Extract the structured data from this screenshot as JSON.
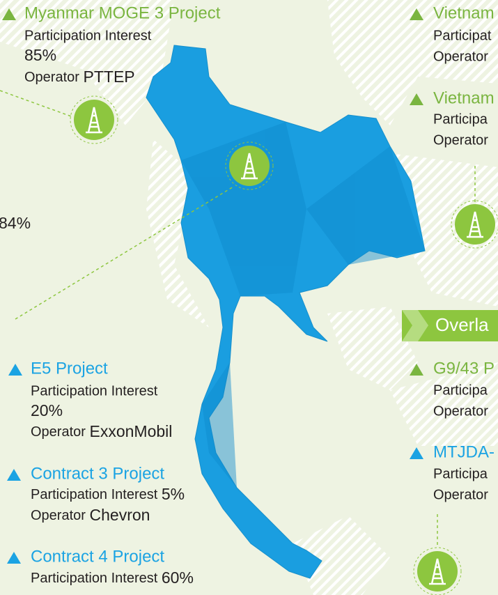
{
  "blocks": [
    {
      "title": "Myanmar MOGE 3 Project",
      "interest_label": "Participation Interest",
      "interest": "85%",
      "operator_label": "Operator",
      "operator": "PTTEP"
    },
    {
      "title": "Vietnam",
      "interest_label": "Participat",
      "operator_label": "Operator"
    },
    {
      "title": "Vietnam",
      "interest_label": "Participa",
      "operator_label": "Operator"
    },
    {
      "title": "E5 Project",
      "interest_label": "Participation Interest",
      "interest": "20%",
      "operator_label": "Operator",
      "operator": "ExxonMobil"
    },
    {
      "title": "Contract 3 Project",
      "interest_label": "Participation Interest",
      "interest": "5%",
      "operator_label": "Operator",
      "operator": "Chevron"
    },
    {
      "title": "Contract 4 Project",
      "interest_label": "Participation Interest",
      "interest": "60%"
    },
    {
      "title": "G9/43 P",
      "interest_label": "Participa",
      "operator_label": "Operator"
    },
    {
      "title": "MTJDA-",
      "interest_label": "Participa",
      "operator_label": "Operator"
    }
  ],
  "left_fragment": "84%",
  "banner": "Overla"
}
